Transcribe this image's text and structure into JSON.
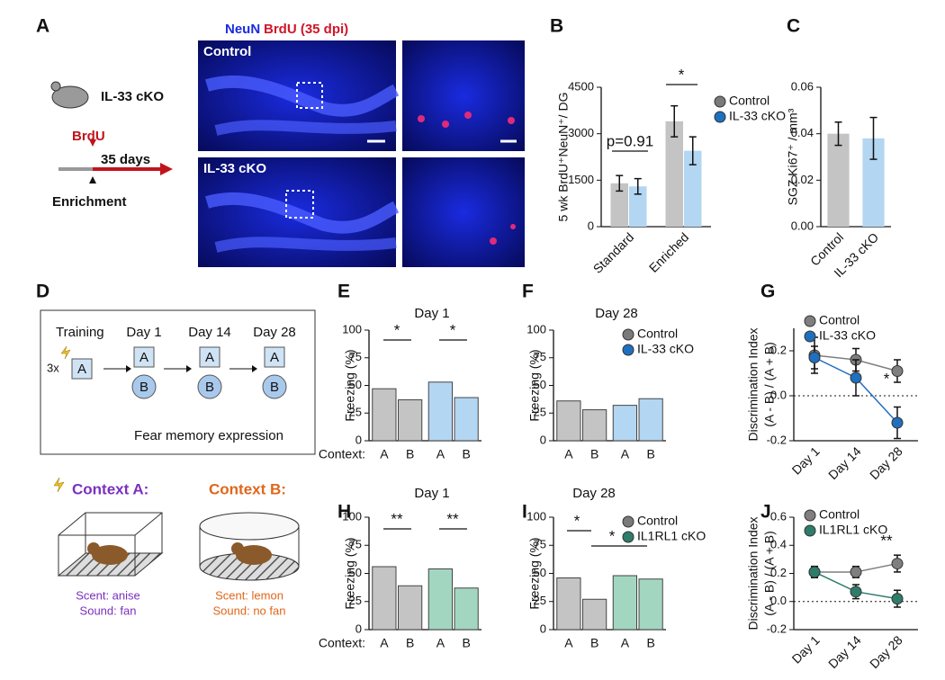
{
  "panel_labels": [
    "A",
    "B",
    "C",
    "D",
    "E",
    "F",
    "G",
    "H",
    "I",
    "J"
  ],
  "panel_a": {
    "mouse_label": "IL-33 cKO",
    "pulse": "BrdU",
    "duration": "35 days",
    "start": "Enrichment",
    "stain_1": "NeuN",
    "stain_2": "BrdU (35 dpi)",
    "image_labels": [
      "Control",
      "IL-33 cKO"
    ]
  },
  "panel_d": {
    "stages": [
      "Training",
      "Day 1",
      "Day 14",
      "Day 28"
    ],
    "shocks": "3x",
    "box_label": "A",
    "circle_label": "B",
    "caption": "Fear memory expression",
    "contexts": [
      {
        "title": "Context A:",
        "scent": "Scent: anise",
        "sound": "Sound: fan"
      },
      {
        "title": "Context B:",
        "scent": "Scent: lemon",
        "sound": "Sound: no fan"
      }
    ]
  },
  "chart_data": [
    {
      "type": "bar",
      "ylabel": "5 wk BrdU⁺NeuN⁺/ DG",
      "categories": [
        "Standard",
        "Enriched"
      ],
      "series": [
        {
          "name": "Control",
          "color": "#c4c4c4",
          "marker_color": "#7a7a7a",
          "values": [
            1400,
            3400
          ],
          "errors": [
            250,
            500
          ]
        },
        {
          "name": "IL-33 cKO",
          "color": "#b3d6f2",
          "marker_color": "#1f6fbf",
          "values": [
            1300,
            2450
          ],
          "errors": [
            250,
            450
          ]
        }
      ],
      "ylim": [
        0,
        4500
      ],
      "yticks": [
        0,
        1500,
        3000,
        4500
      ],
      "annotations": [
        "p=0.91",
        "*"
      ]
    },
    {
      "type": "bar",
      "ylabel": "SGZ Ki67⁺ / mm³",
      "categories": [
        "Control",
        "IL-33 cKO"
      ],
      "values": [
        0.04,
        0.038
      ],
      "errors": [
        0.005,
        0.009
      ],
      "colors": [
        "#c4c4c4",
        "#b3d6f2"
      ],
      "ylim": [
        0,
        0.06
      ],
      "yticks": [
        {
          "value": 0,
          "label": "0.00"
        },
        0.02,
        0.04,
        0.06
      ]
    },
    {
      "type": "paired-bar",
      "title": "Day 1",
      "ylabel": "Freezing (%)",
      "xlabel": "Context:",
      "categories": [
        "A",
        "B"
      ],
      "series": [
        {
          "color": "#c4c4c4",
          "values": [
            47,
            37
          ]
        },
        {
          "color": "#b3d6f2",
          "values": [
            53,
            39
          ]
        }
      ],
      "ylim": [
        0,
        100
      ],
      "yticks": [
        0,
        25,
        50,
        75,
        100
      ],
      "annotations": [
        "*",
        "*"
      ]
    },
    {
      "type": "paired-bar",
      "title": "Day 28",
      "ylabel": "Freezing (%)",
      "categories": [
        "A",
        "B"
      ],
      "series": [
        {
          "name": "Control",
          "color": "#c4c4c4",
          "marker_color": "#7a7a7a",
          "values": [
            36,
            28
          ]
        },
        {
          "name": "IL-33 cKO",
          "color": "#b3d6f2",
          "marker_color": "#1f6fbf",
          "values": [
            32,
            38
          ]
        }
      ],
      "ylim": [
        0,
        100
      ],
      "yticks": [
        0,
        25,
        50,
        75,
        100
      ]
    },
    {
      "type": "line",
      "ylabel": [
        "Discrimination Index",
        "(A - B) / (A + B)"
      ],
      "categories": [
        "Day 1",
        "Day 14",
        "Day 28"
      ],
      "series": [
        {
          "name": "Control",
          "color": "#7f7f7f",
          "values": [
            0.18,
            0.16,
            0.11
          ],
          "errors": [
            0.08,
            0.05,
            0.05
          ]
        },
        {
          "name": "IL-33 cKO",
          "color": "#1f6fbf",
          "values": [
            0.17,
            0.08,
            -0.12
          ],
          "errors": [
            0.05,
            0.08,
            0.07
          ]
        }
      ],
      "ylim": [
        -0.2,
        0.3
      ],
      "yticks": [
        -0.2,
        {
          "value": 0,
          "label": "0.0"
        },
        0.2
      ],
      "annotations": [
        "*"
      ]
    },
    {
      "type": "paired-bar",
      "title": "Day 1",
      "ylabel": "Freezing (%)",
      "xlabel": "Context:",
      "categories": [
        "A",
        "B"
      ],
      "series": [
        {
          "color": "#c4c4c4",
          "values": [
            56,
            39
          ]
        },
        {
          "color": "#a3d6c0",
          "values": [
            54,
            37
          ]
        }
      ],
      "ylim": [
        0,
        100
      ],
      "yticks": [
        0,
        25,
        50,
        75,
        100
      ],
      "annotations": [
        "**",
        "**"
      ]
    },
    {
      "type": "paired-bar",
      "title": "Day 28",
      "ylabel": "Freezing (%)",
      "categories": [
        "A",
        "B"
      ],
      "series": [
        {
          "name": "Control",
          "color": "#c4c4c4",
          "marker_color": "#7a7a7a",
          "values": [
            46,
            27
          ]
        },
        {
          "name": "IL1RL1 cKO",
          "color": "#a3d6c0",
          "marker_color": "#2e7d6b",
          "values": [
            48,
            45
          ]
        }
      ],
      "ylim": [
        0,
        100
      ],
      "yticks": [
        0,
        25,
        50,
        75,
        100
      ],
      "annotations": [
        "*",
        "*"
      ]
    },
    {
      "type": "line",
      "ylabel": [
        "Discrimination Index",
        "(A - B) / (A + B)"
      ],
      "categories": [
        "Day 1",
        "Day 14",
        "Day 28"
      ],
      "series": [
        {
          "name": "Control",
          "color": "#7f7f7f",
          "values": [
            0.21,
            0.21,
            0.27
          ],
          "errors": [
            0.04,
            0.04,
            0.06
          ]
        },
        {
          "name": "IL1RL1 cKO",
          "color": "#2e7d6b",
          "values": [
            0.21,
            0.07,
            0.02
          ],
          "errors": [
            0.04,
            0.05,
            0.06
          ]
        }
      ],
      "ylim": [
        -0.2,
        0.6
      ],
      "yticks": [
        -0.2,
        {
          "value": 0,
          "label": "0.0"
        },
        0.2,
        0.4,
        0.6
      ],
      "annotations": [
        "**"
      ]
    }
  ]
}
